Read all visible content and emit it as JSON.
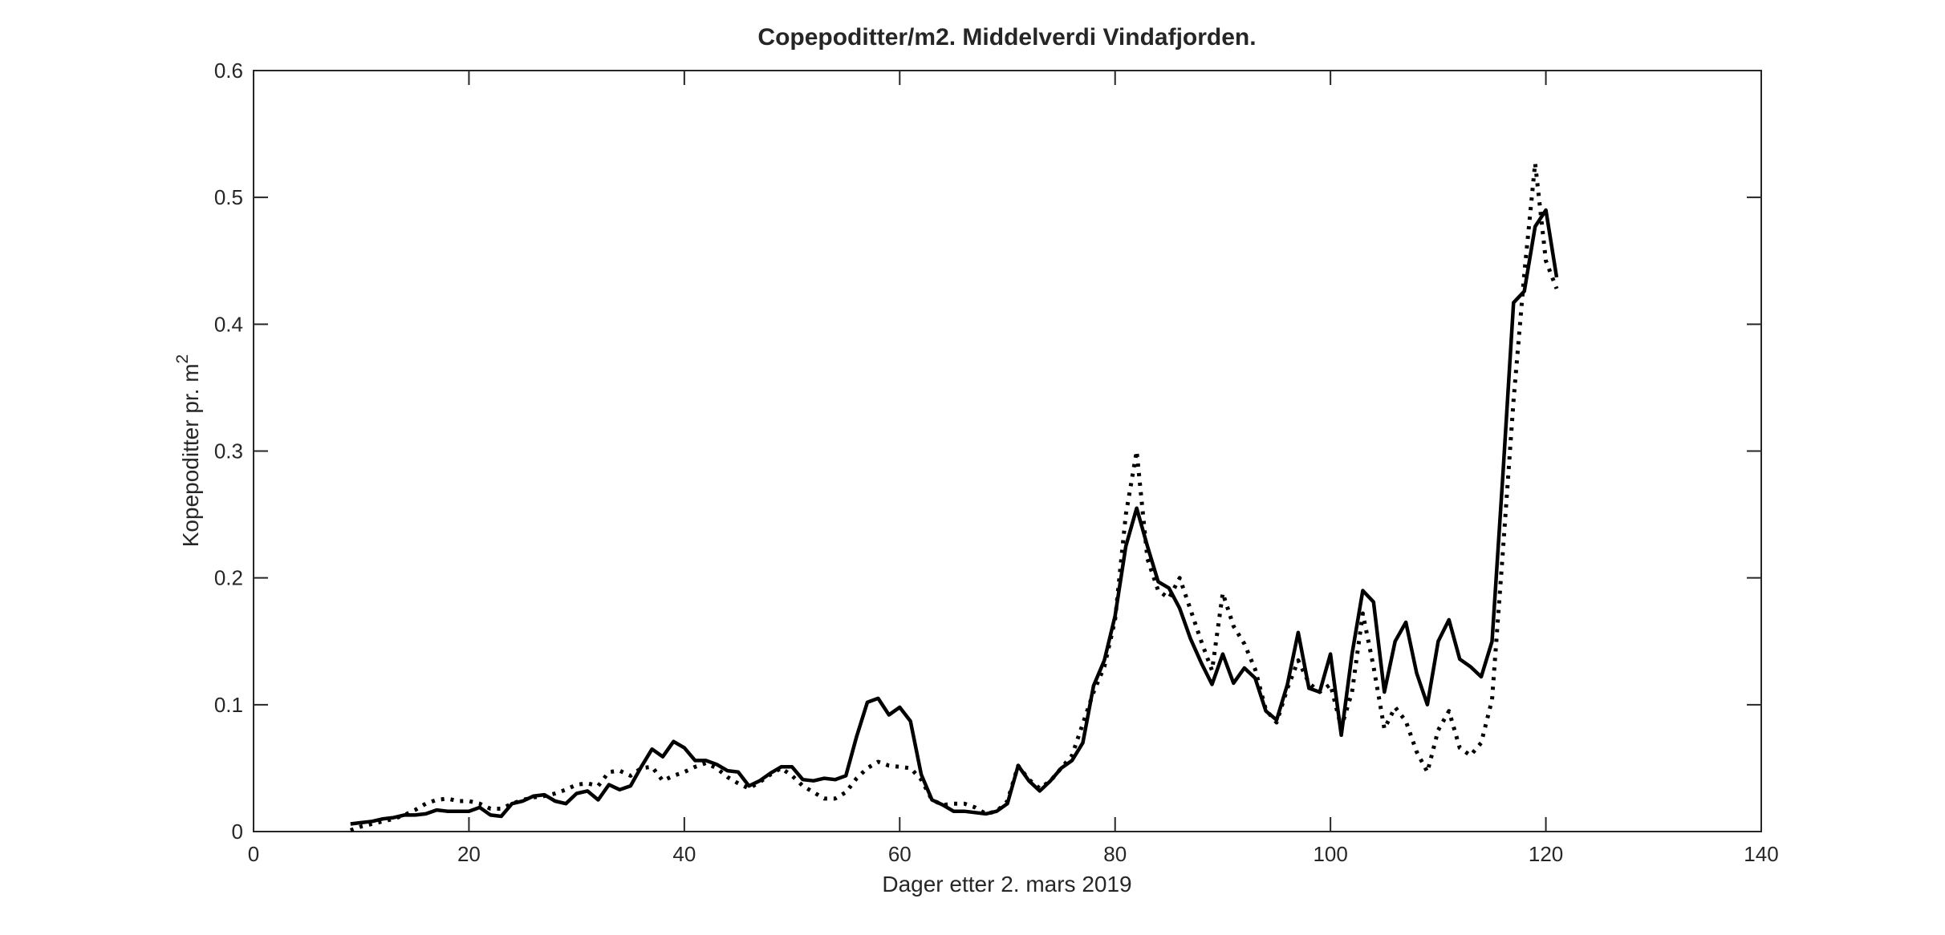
{
  "figure": {
    "background": "#ffffff",
    "axis_color": "#262626",
    "line_color": "#000000"
  },
  "chart_data": {
    "type": "line",
    "title": "Copepoditter/m2. Middelverdi Vindafjorden.",
    "xlabel": "Dager etter 2. mars 2019",
    "ylabel": {
      "text": "Kopepoditter pr. m",
      "superscript": "2"
    },
    "xlim": [
      0,
      140
    ],
    "ylim": [
      0,
      0.6
    ],
    "xticks": [
      0,
      20,
      40,
      60,
      80,
      100,
      120,
      140
    ],
    "xtick_labels": [
      "0",
      "20",
      "40",
      "60",
      "80",
      "100",
      "120",
      "140"
    ],
    "yticks": [
      0,
      0.1,
      0.2,
      0.3,
      0.4,
      0.5,
      0.6
    ],
    "ytick_labels": [
      "0",
      "0.1",
      "0.2",
      "0.3",
      "0.4",
      "0.5",
      "0.6"
    ],
    "grid": false,
    "legend": null,
    "x_unit": "days after 2 March 2019",
    "x_start": 9,
    "x_step": 1,
    "series": [
      {
        "name": "solid-line",
        "style": "solid",
        "color": "#000000",
        "values": [
          0.006,
          0.007,
          0.008,
          0.01,
          0.011,
          0.013,
          0.013,
          0.014,
          0.017,
          0.016,
          0.016,
          0.016,
          0.019,
          0.013,
          0.012,
          0.022,
          0.024,
          0.028,
          0.029,
          0.024,
          0.022,
          0.03,
          0.032,
          0.025,
          0.037,
          0.033,
          0.036,
          0.051,
          0.065,
          0.059,
          0.071,
          0.066,
          0.056,
          0.056,
          0.053,
          0.048,
          0.047,
          0.036,
          0.04,
          0.046,
          0.051,
          0.051,
          0.041,
          0.04,
          0.042,
          0.041,
          0.044,
          0.075,
          0.102,
          0.105,
          0.092,
          0.098,
          0.087,
          0.045,
          0.025,
          0.021,
          0.016,
          0.016,
          0.015,
          0.014,
          0.016,
          0.022,
          0.052,
          0.04,
          0.032,
          0.04,
          0.05,
          0.056,
          0.07,
          0.115,
          0.135,
          0.17,
          0.225,
          0.255,
          0.225,
          0.197,
          0.192,
          0.176,
          0.152,
          0.133,
          0.116,
          0.14,
          0.117,
          0.129,
          0.121,
          0.095,
          0.088,
          0.116,
          0.157,
          0.113,
          0.11,
          0.14,
          0.076,
          0.14,
          0.19,
          0.181,
          0.11,
          0.15,
          0.165,
          0.125,
          0.1,
          0.15,
          0.167,
          0.136,
          0.13,
          0.122,
          0.15,
          0.28,
          0.417,
          0.426,
          0.477,
          0.49,
          0.437
        ]
      },
      {
        "name": "dotted-line",
        "style": "dotted",
        "color": "#000000",
        "values": [
          0.001,
          0.004,
          0.006,
          0.008,
          0.01,
          0.013,
          0.017,
          0.022,
          0.025,
          0.026,
          0.024,
          0.024,
          0.022,
          0.018,
          0.018,
          0.022,
          0.025,
          0.027,
          0.028,
          0.03,
          0.033,
          0.037,
          0.038,
          0.036,
          0.047,
          0.048,
          0.044,
          0.05,
          0.051,
          0.04,
          0.044,
          0.047,
          0.051,
          0.054,
          0.05,
          0.043,
          0.038,
          0.034,
          0.039,
          0.045,
          0.05,
          0.044,
          0.036,
          0.031,
          0.026,
          0.026,
          0.031,
          0.042,
          0.05,
          0.055,
          0.052,
          0.051,
          0.05,
          0.041,
          0.025,
          0.021,
          0.022,
          0.022,
          0.019,
          0.014,
          0.016,
          0.024,
          0.052,
          0.041,
          0.034,
          0.04,
          0.05,
          0.06,
          0.085,
          0.11,
          0.13,
          0.167,
          0.25,
          0.3,
          0.215,
          0.19,
          0.184,
          0.2,
          0.175,
          0.15,
          0.127,
          0.188,
          0.162,
          0.148,
          0.128,
          0.096,
          0.086,
          0.113,
          0.135,
          0.117,
          0.11,
          0.116,
          0.082,
          0.11,
          0.172,
          0.13,
          0.081,
          0.098,
          0.087,
          0.063,
          0.047,
          0.08,
          0.095,
          0.066,
          0.06,
          0.07,
          0.104,
          0.22,
          0.34,
          0.44,
          0.527,
          0.45,
          0.428
        ]
      }
    ]
  }
}
